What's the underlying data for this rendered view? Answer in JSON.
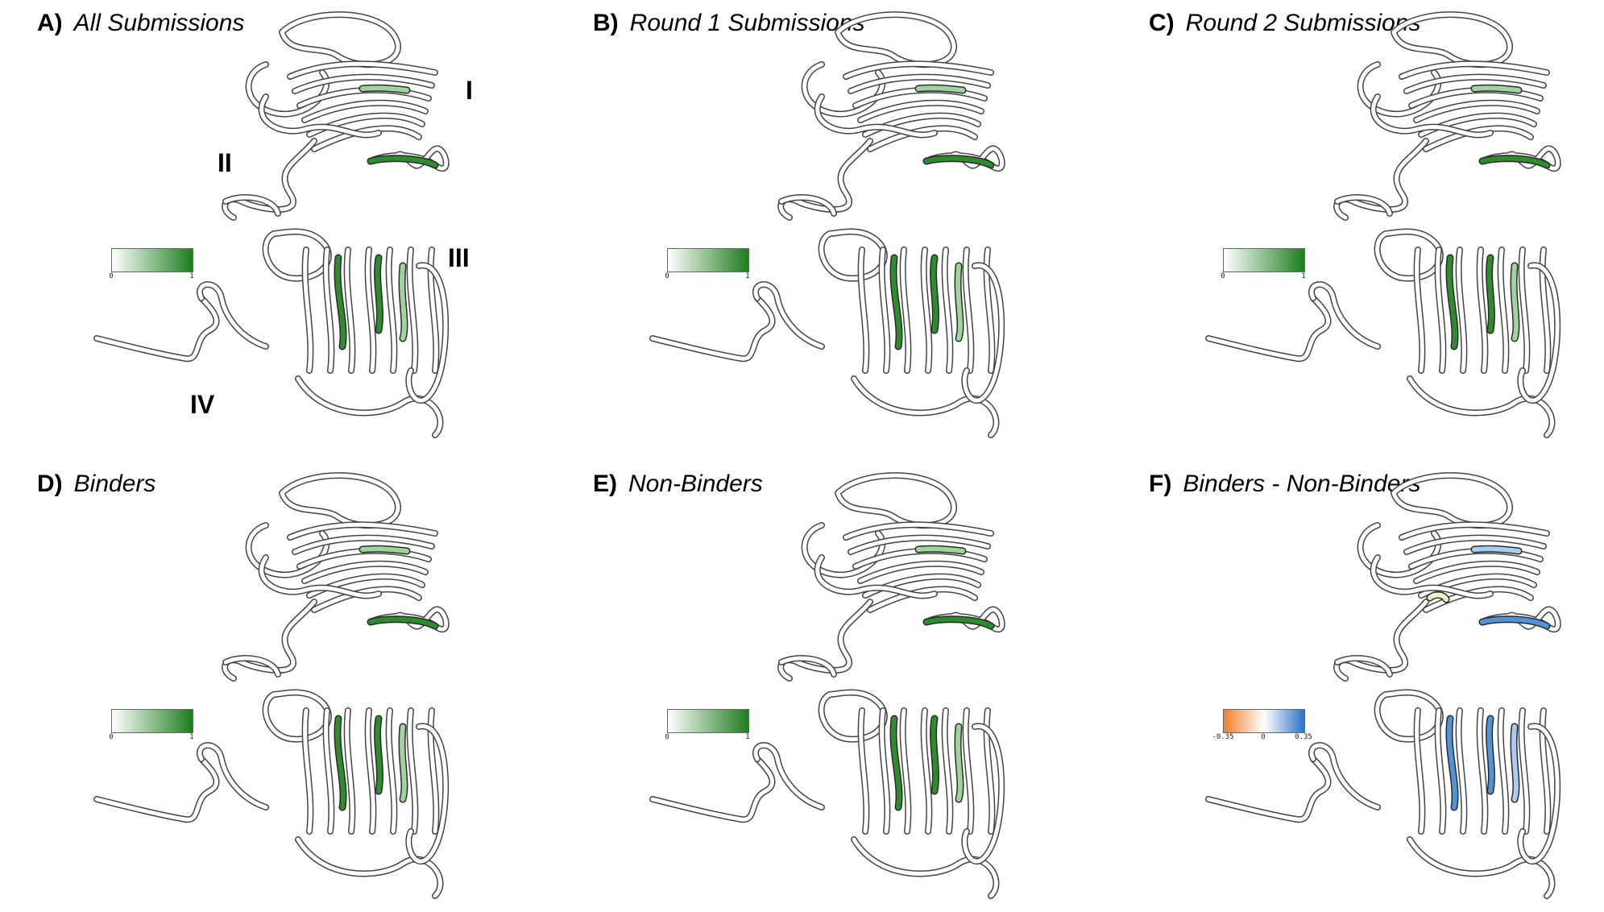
{
  "panels": [
    {
      "letter": "A)",
      "title": "All Submissions",
      "colorbar": {
        "ticks": [
          "0",
          "1"
        ],
        "colors": [
          "#ffffff",
          "#1e7d1e"
        ]
      }
    },
    {
      "letter": "B)",
      "title": "Round 1 Submissions",
      "colorbar": {
        "ticks": [
          "0",
          "1"
        ],
        "colors": [
          "#ffffff",
          "#1e7d1e"
        ]
      }
    },
    {
      "letter": "C)",
      "title": "Round 2 Submissions",
      "colorbar": {
        "ticks": [
          "0",
          "1"
        ],
        "colors": [
          "#ffffff",
          "#1e7d1e"
        ]
      }
    },
    {
      "letter": "D)",
      "title": "Binders",
      "colorbar": {
        "ticks": [
          "0",
          "1"
        ],
        "colors": [
          "#ffffff",
          "#1e7d1e"
        ]
      }
    },
    {
      "letter": "E)",
      "title": "Non-Binders",
      "colorbar": {
        "ticks": [
          "0",
          "1"
        ],
        "colors": [
          "#ffffff",
          "#1e7d1e"
        ]
      }
    },
    {
      "letter": "F)",
      "title": "Binders - Non-Binders",
      "colorbar": {
        "ticks": [
          "-0.35",
          "0",
          "0.35"
        ],
        "colors": [
          "#f07f2a",
          "#ffffff",
          "#2a74c8"
        ]
      }
    }
  ],
  "domain_labels": [
    "I",
    "II",
    "III",
    "IV"
  ],
  "highlight_colors": {
    "green_strong": "#2e8b2e",
    "green_light": "#9fd39f",
    "blue": "#4f94d8",
    "light_blue": "#a9cdf0",
    "pale_yellow": "#f4f1c8"
  }
}
